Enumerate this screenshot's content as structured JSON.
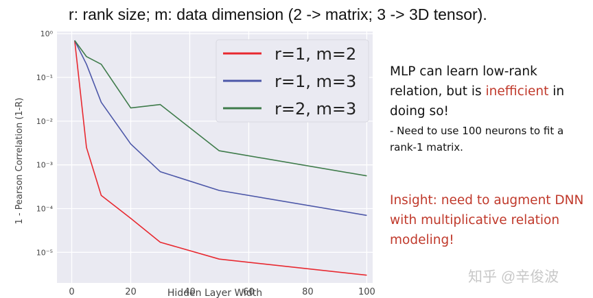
{
  "header": {
    "title": "r: rank size;  m: data dimension (2 -> matrix; 3 -> 3D tensor)."
  },
  "notes": {
    "main_before": "MLP can learn low-rank relation, but is ",
    "main_highlight": "inefficient",
    "main_after": " in doing so!",
    "sub": "- Need to use 100 neurons to fit a rank-1 matrix.",
    "insight": "Insight: need to augment DNN with multiplicative relation modeling!"
  },
  "watermark": "知乎 @辛俊波",
  "colors": {
    "accent_red": "#c0392b",
    "plot_bg": "#eaeaf2",
    "grid": "#ffffff"
  },
  "chart_data": {
    "type": "line",
    "xlabel": "Hidden Layer Width",
    "ylabel": "1 - Pearson Correlation (1-R)",
    "xlim": [
      -5,
      102
    ],
    "ylim_log10": [
      -5.7,
      0.05
    ],
    "yscale": "log",
    "grid": true,
    "legend_position": "top-right",
    "x_ticks": [
      0,
      20,
      40,
      60,
      80,
      100
    ],
    "y_ticks": [
      {
        "exp": 0,
        "label": "10⁰"
      },
      {
        "exp": -1,
        "label": "10⁻¹"
      },
      {
        "exp": -2,
        "label": "10⁻²"
      },
      {
        "exp": -3,
        "label": "10⁻³"
      },
      {
        "exp": -4,
        "label": "10⁻⁴"
      },
      {
        "exp": -5,
        "label": "10⁻⁵"
      }
    ],
    "series": [
      {
        "name": "r=1, m=2",
        "color": "#e8282f",
        "x": [
          1,
          5,
          10,
          20,
          30,
          50,
          100
        ],
        "y": [
          0.7,
          0.0025,
          0.0002,
          6e-05,
          1.7e-05,
          7e-06,
          3e-06
        ]
      },
      {
        "name": "r=1, m=3",
        "color": "#4c57a8",
        "x": [
          1,
          5,
          10,
          20,
          30,
          50,
          100
        ],
        "y": [
          0.7,
          0.2,
          0.027,
          0.003,
          0.0007,
          0.00026,
          7e-05
        ]
      },
      {
        "name": "r=2, m=3",
        "color": "#3e7b4a",
        "x": [
          1,
          5,
          10,
          20,
          30,
          50,
          100
        ],
        "y": [
          0.7,
          0.3,
          0.2,
          0.02,
          0.024,
          0.0021,
          0.00056
        ]
      }
    ]
  }
}
